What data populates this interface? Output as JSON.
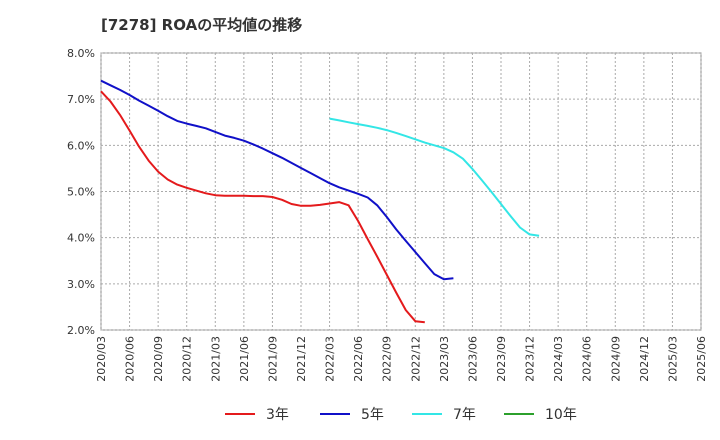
{
  "chart_data": {
    "type": "line",
    "title": "[7278]  ROAの平均値の推移",
    "xlabel": "",
    "ylabel": "",
    "ylim": [
      2.0,
      8.0
    ],
    "y_ticks": [
      "2.0%",
      "3.0%",
      "4.0%",
      "5.0%",
      "6.0%",
      "7.0%",
      "8.0%"
    ],
    "x_ticks": [
      "2020/03",
      "2020/06",
      "2020/09",
      "2020/12",
      "2021/03",
      "2021/06",
      "2021/09",
      "2021/12",
      "2022/03",
      "2022/06",
      "2022/09",
      "2022/12",
      "2023/03",
      "2023/06",
      "2023/09",
      "2023/12",
      "2024/03",
      "2024/06",
      "2024/09",
      "2024/12",
      "2025/03",
      "2025/06"
    ],
    "grid": true,
    "legend_position": "bottom",
    "series": [
      {
        "name": "3年",
        "color": "#e41a1c",
        "points": [
          [
            0,
            7.17
          ],
          [
            1,
            6.95
          ],
          [
            2,
            6.66
          ],
          [
            3,
            6.32
          ],
          [
            4,
            5.97
          ],
          [
            5,
            5.67
          ],
          [
            6,
            5.43
          ],
          [
            7,
            5.26
          ],
          [
            8,
            5.15
          ],
          [
            9,
            5.08
          ],
          [
            10,
            5.02
          ],
          [
            11,
            4.96
          ],
          [
            12,
            4.92
          ],
          [
            13,
            4.91
          ],
          [
            14,
            4.91
          ],
          [
            15,
            4.91
          ],
          [
            16,
            4.9
          ],
          [
            17,
            4.9
          ],
          [
            18,
            4.88
          ],
          [
            19,
            4.82
          ],
          [
            20,
            4.73
          ],
          [
            21,
            4.69
          ],
          [
            22,
            4.69
          ],
          [
            23,
            4.71
          ],
          [
            24,
            4.74
          ],
          [
            25,
            4.77
          ],
          [
            26,
            4.7
          ],
          [
            27,
            4.36
          ],
          [
            28,
            3.97
          ],
          [
            29,
            3.59
          ],
          [
            30,
            3.2
          ],
          [
            31,
            2.81
          ],
          [
            32,
            2.43
          ],
          [
            33,
            2.19
          ],
          [
            34,
            2.17
          ]
        ]
      },
      {
        "name": "5年",
        "color": "#1010c8",
        "points": [
          [
            0,
            7.4
          ],
          [
            1,
            7.3
          ],
          [
            2,
            7.2
          ],
          [
            3,
            7.09
          ],
          [
            4,
            6.97
          ],
          [
            5,
            6.86
          ],
          [
            6,
            6.75
          ],
          [
            7,
            6.63
          ],
          [
            8,
            6.53
          ],
          [
            9,
            6.47
          ],
          [
            10,
            6.42
          ],
          [
            11,
            6.37
          ],
          [
            12,
            6.29
          ],
          [
            13,
            6.21
          ],
          [
            14,
            6.16
          ],
          [
            15,
            6.1
          ],
          [
            16,
            6.02
          ],
          [
            17,
            5.93
          ],
          [
            18,
            5.83
          ],
          [
            19,
            5.73
          ],
          [
            20,
            5.62
          ],
          [
            21,
            5.51
          ],
          [
            22,
            5.4
          ],
          [
            23,
            5.29
          ],
          [
            24,
            5.18
          ],
          [
            25,
            5.09
          ],
          [
            26,
            5.02
          ],
          [
            27,
            4.95
          ],
          [
            28,
            4.87
          ],
          [
            29,
            4.7
          ],
          [
            30,
            4.45
          ],
          [
            31,
            4.18
          ],
          [
            32,
            3.93
          ],
          [
            33,
            3.69
          ],
          [
            34,
            3.45
          ],
          [
            35,
            3.21
          ],
          [
            36,
            3.1
          ],
          [
            37,
            3.12
          ]
        ]
      },
      {
        "name": "7年",
        "color": "#33e6e6",
        "points": [
          [
            0,
            6.58
          ],
          [
            1,
            6.54
          ],
          [
            2,
            6.5
          ],
          [
            3,
            6.46
          ],
          [
            4,
            6.42
          ],
          [
            5,
            6.38
          ],
          [
            6,
            6.33
          ],
          [
            7,
            6.27
          ],
          [
            8,
            6.2
          ],
          [
            9,
            6.13
          ],
          [
            10,
            6.06
          ],
          [
            11,
            6.0
          ],
          [
            12,
            5.94
          ],
          [
            13,
            5.85
          ],
          [
            14,
            5.71
          ],
          [
            15,
            5.49
          ],
          [
            16,
            5.24
          ],
          [
            17,
            4.99
          ],
          [
            18,
            4.73
          ],
          [
            19,
            4.47
          ],
          [
            20,
            4.22
          ],
          [
            21,
            4.07
          ],
          [
            22,
            4.04
          ]
        ]
      },
      {
        "name": "10年",
        "color": "#2ca02c",
        "points": []
      }
    ]
  }
}
